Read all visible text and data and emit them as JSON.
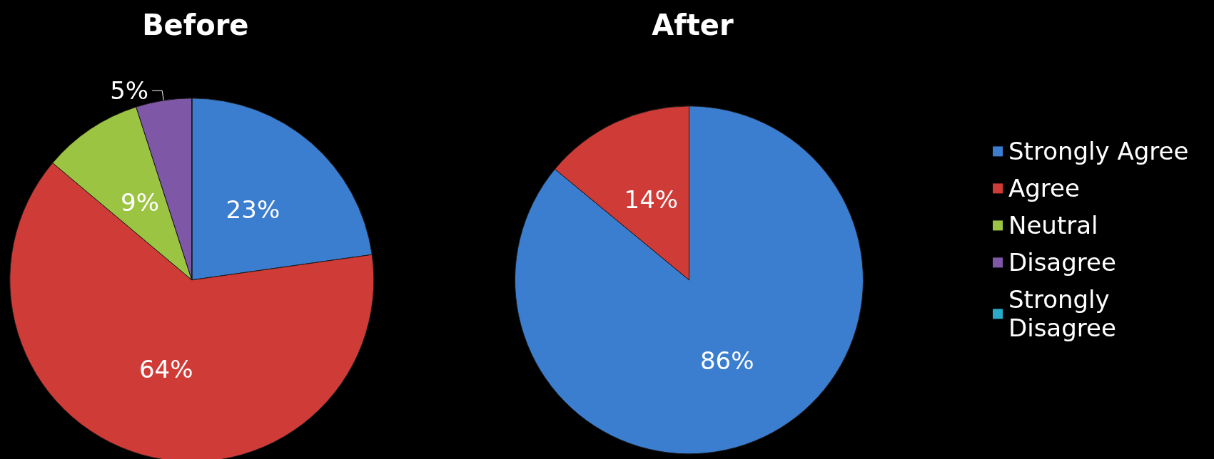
{
  "chart_data": [
    {
      "type": "pie",
      "title": "Before",
      "categories": [
        null,
        null,
        null,
        null,
        null
      ],
      "values": [
        23,
        64,
        9,
        5,
        0
      ],
      "value_labels": [
        "23%",
        "64%",
        "9%",
        "5%",
        null
      ],
      "colors": [
        "#3b7dcf",
        "#cf3b37",
        "#9cc443",
        "#7e58a6",
        "#29aac9"
      ],
      "legend": false
    },
    {
      "type": "pie",
      "title": "After",
      "categories": [
        "Strongly Agree",
        "Agree",
        "Neutral",
        "Disagree",
        "Strongly Disagree"
      ],
      "values": [
        86,
        14,
        0,
        0,
        0
      ],
      "value_labels": [
        "86%",
        "14%",
        null,
        null,
        null
      ],
      "colors": [
        "#3b7dcf",
        "#cf3b37",
        "#9cc443",
        "#7e58a6",
        "#29aac9"
      ],
      "legend": "right"
    }
  ]
}
